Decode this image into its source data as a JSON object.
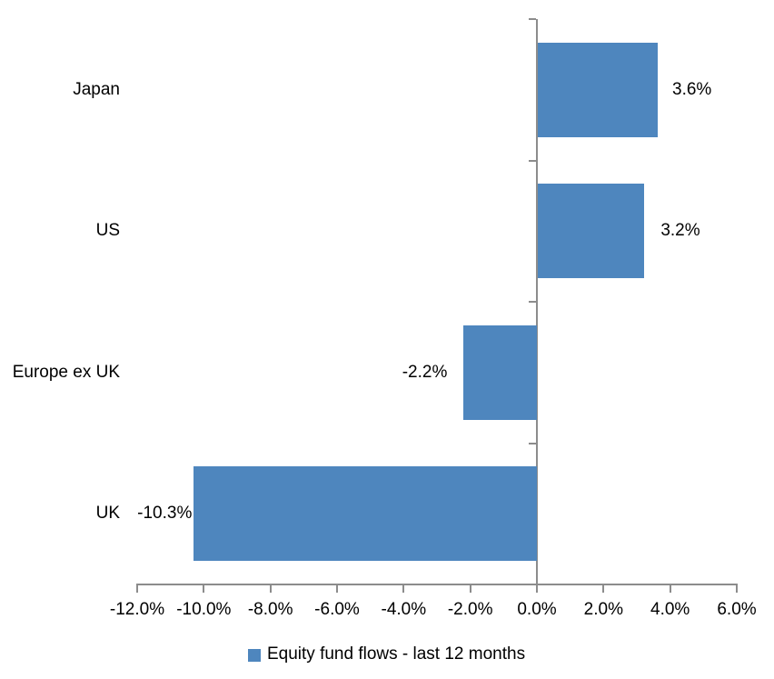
{
  "chart_data": {
    "type": "bar",
    "orientation": "horizontal",
    "title": "",
    "xlabel": "",
    "ylabel": "",
    "categories": [
      "Japan",
      "US",
      "Europe ex UK",
      "UK"
    ],
    "series": [
      {
        "name": "Equity fund flows - last 12 months",
        "values": [
          3.6,
          3.2,
          -2.2,
          -10.3
        ],
        "data_labels": [
          "3.6%",
          "3.2%",
          "-2.2%",
          "-10.3%"
        ],
        "color": "#4E86BE"
      }
    ],
    "xlim": [
      -12,
      6
    ],
    "x_tick_step": 2,
    "x_tick_labels": [
      "-12.0%",
      "-10.0%",
      "-8.0%",
      "-6.0%",
      "-4.0%",
      "-2.0%",
      "0.0%",
      "2.0%",
      "4.0%",
      "6.0%"
    ],
    "grid": false,
    "data_labels_position": "outside-end",
    "legend": {
      "position": "bottom",
      "entries": [
        {
          "label": "Equity fund flows - last 12 months",
          "swatch_color": "#4E86BE"
        }
      ]
    },
    "colors": {
      "bar": "#4E86BE",
      "axis": "#8C8C8C",
      "text": "#000000",
      "background": "#FFFFFF"
    }
  }
}
